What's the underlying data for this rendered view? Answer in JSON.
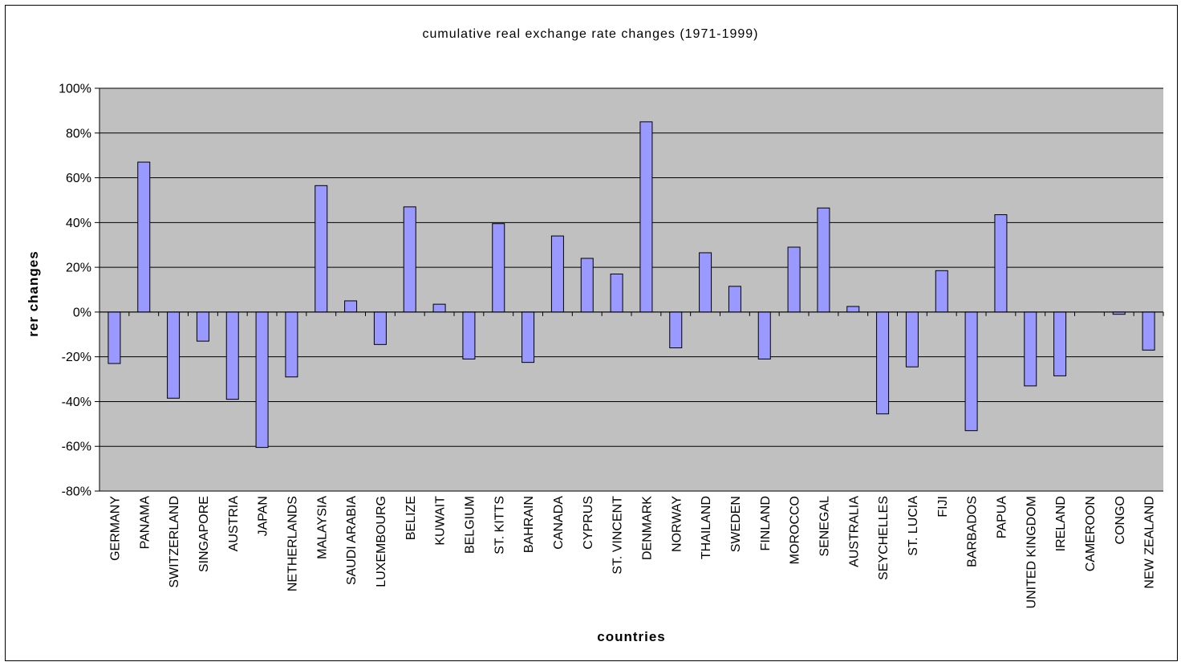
{
  "chart_data": {
    "type": "bar",
    "title": "cumulative real exchange rate changes (1971-1999)",
    "xlabel": "countries",
    "ylabel": "rer changes",
    "ylim": [
      -80,
      100
    ],
    "yticks": [
      100,
      80,
      60,
      40,
      20,
      0,
      -20,
      -40,
      -60,
      -80
    ],
    "ytick_labels": [
      "100%",
      "80%",
      "60%",
      "40%",
      "20%",
      "0%",
      "-20%",
      "-40%",
      "-60%",
      "-80%"
    ],
    "grid": true,
    "legend": "none",
    "colors": {
      "plot_background": "#c0c0c0",
      "bar_fill": "#9999ff",
      "bar_stroke": "#000000",
      "gridline": "#000000"
    },
    "categories": [
      "GERMANY",
      "PANAMA",
      "SWITZERLAND",
      "SINGAPORE",
      "AUSTRIA",
      "JAPAN",
      "NETHERLANDS",
      "MALAYSIA",
      "SAUDI ARABIA",
      "LUXEMBOURG",
      "BELIZE",
      "KUWAIT",
      "BELGIUM",
      "ST. KITTS",
      "BAHRAIN",
      "CANADA",
      "CYPRUS",
      "ST. VINCENT",
      "DENMARK",
      "NORWAY",
      "THAILAND",
      "SWEDEN",
      "FINLAND",
      "MOROCCO",
      "SENEGAL",
      "AUSTRALIA",
      "SEYCHELLES",
      "ST. LUCIA",
      "FIJI",
      "BARBADOS",
      "PAPUA",
      "UNITED KINGDOM",
      "IRELAND",
      "CAMEROON",
      "CONGO",
      "NEW ZEALAND"
    ],
    "values": [
      -23,
      67,
      -38.5,
      -13,
      -39,
      -60.5,
      -29,
      56.5,
      5,
      -14.5,
      47,
      3.5,
      -21,
      39.5,
      -22.5,
      34,
      24,
      17,
      85,
      -16,
      26.5,
      11.5,
      -21,
      29,
      46.5,
      2.5,
      -45.5,
      -24.5,
      18.5,
      -53,
      43.5,
      -33,
      -28.5,
      0,
      -1,
      -17
    ]
  }
}
